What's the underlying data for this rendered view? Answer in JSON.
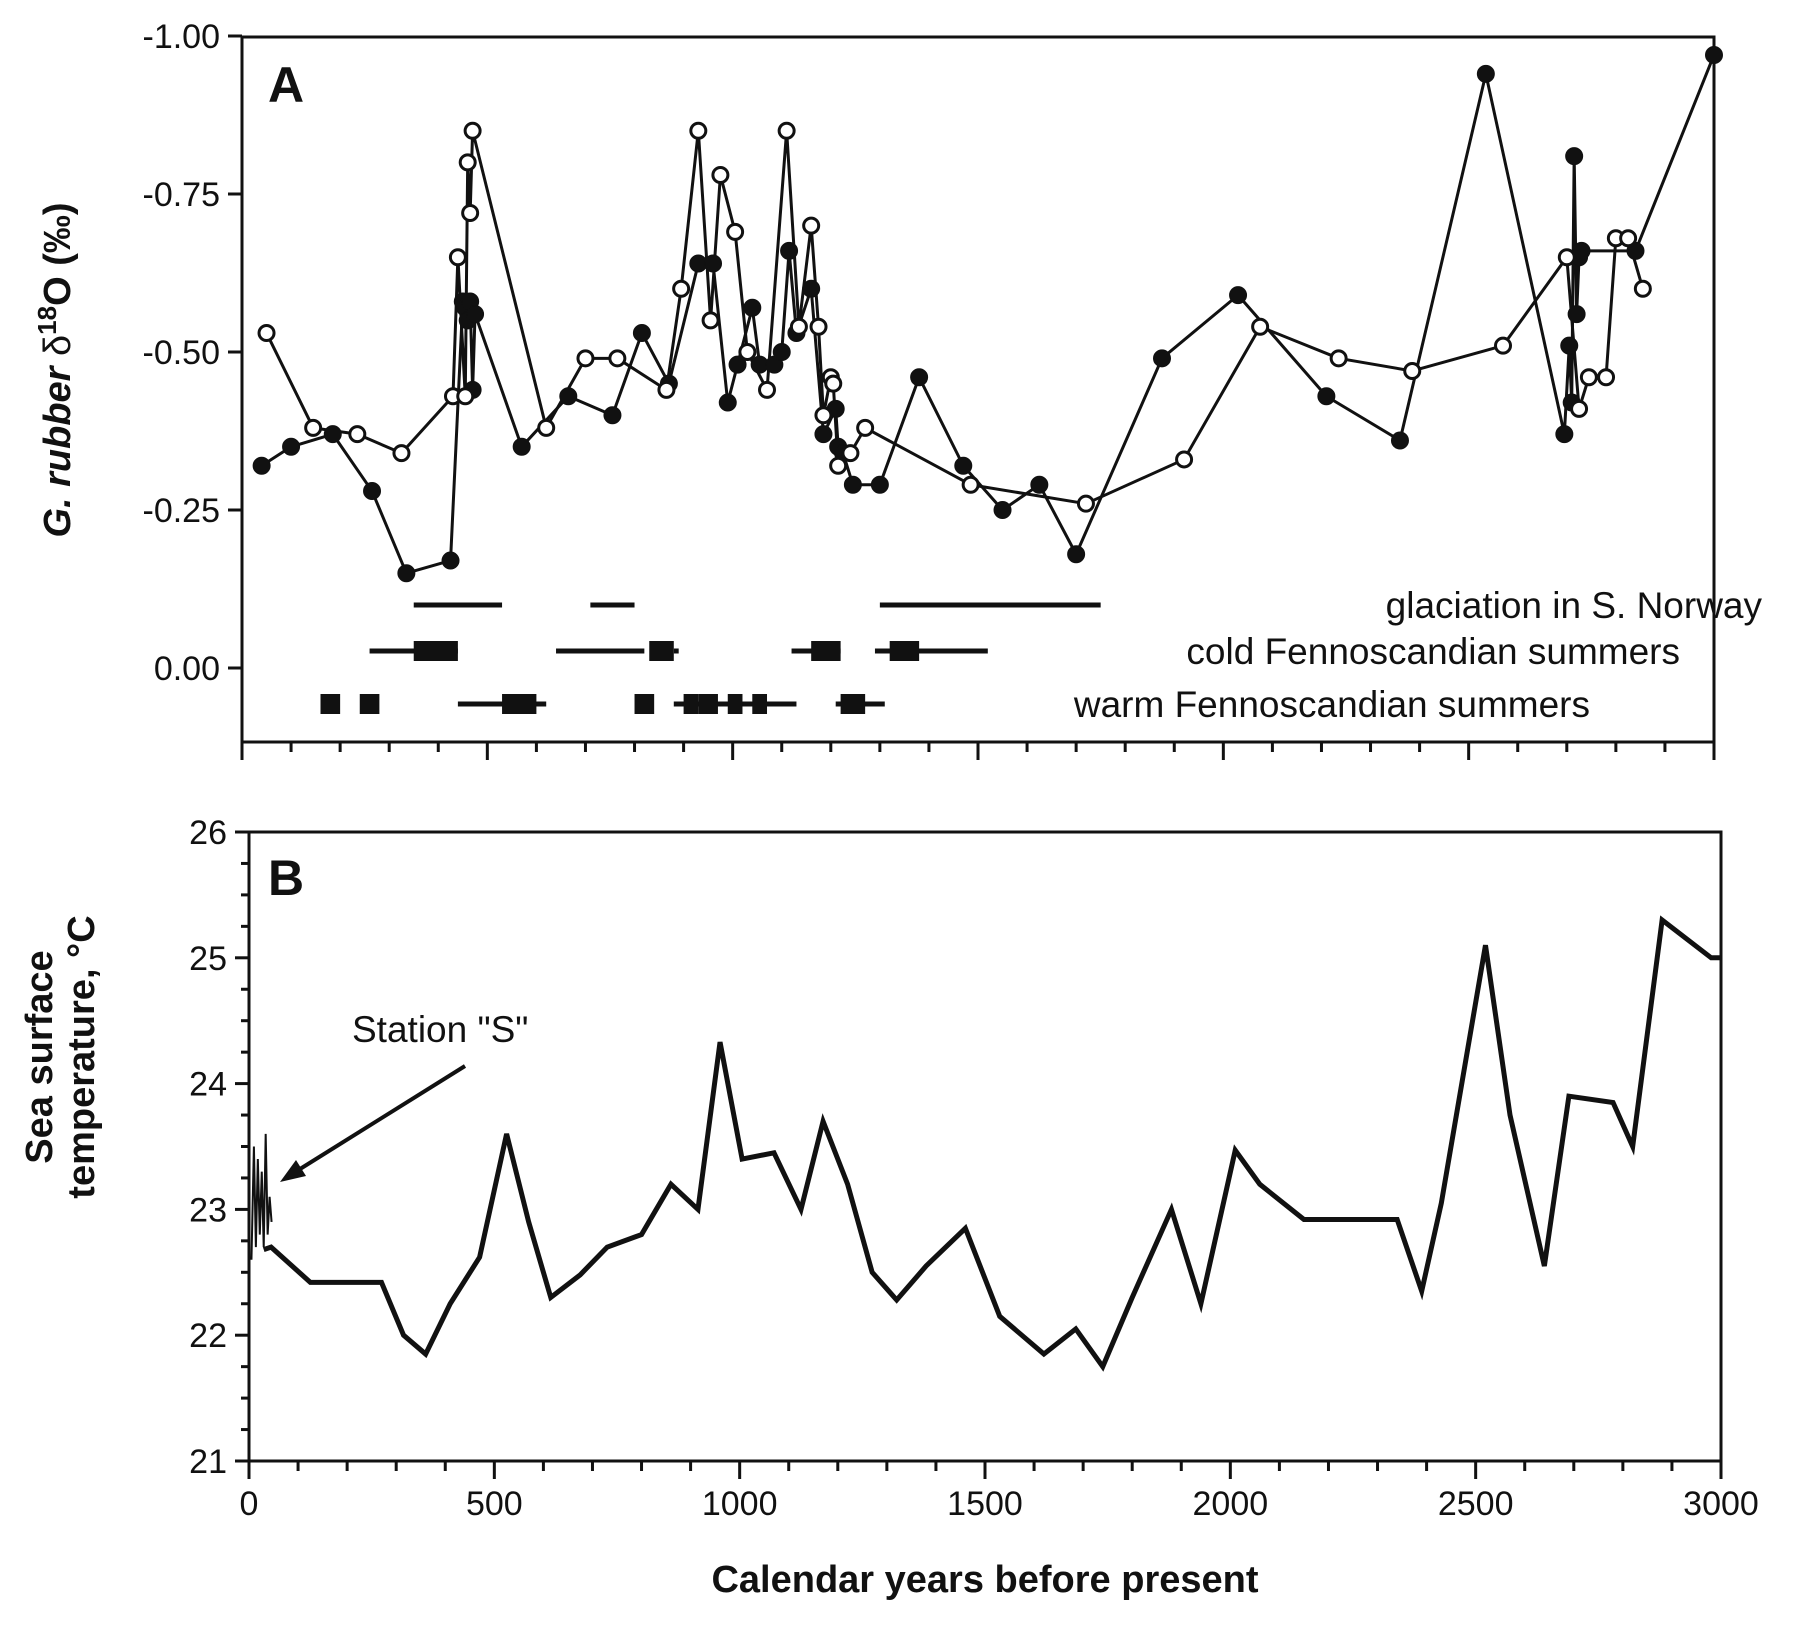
{
  "chart_data": [
    {
      "panel": "A",
      "type": "line",
      "ylabel": "G. rubber δ18O (‰)",
      "ylim": [
        0.12,
        -1.0
      ],
      "y_inverted": true,
      "yticks": [
        -1.0,
        -0.75,
        -0.5,
        -0.25,
        0.0
      ],
      "ytick_labels": [
        "-1.00",
        "-0.75",
        "-0.50",
        "-0.25",
        "0.00"
      ],
      "xlim": [
        0,
        3000
      ],
      "xticks": [
        0,
        500,
        1000,
        1500,
        2000,
        2500,
        3000
      ],
      "grid": false,
      "series": [
        {
          "marker": "filled-circle",
          "x": [
            40,
            100,
            185,
            265,
            335,
            425,
            450,
            455,
            460,
            465,
            470,
            475,
            570,
            665,
            755,
            815,
            870,
            930,
            960,
            990,
            1010,
            1040,
            1055,
            1085,
            1100,
            1115,
            1130,
            1160,
            1185,
            1210,
            1215,
            1225,
            1245,
            1300,
            1380,
            1470,
            1550,
            1625,
            1700,
            1875,
            2030,
            2210,
            2360,
            2535,
            2695,
            2705,
            2710,
            2715,
            2720,
            2725,
            2730,
            2840,
            3000
          ],
          "y": [
            -0.32,
            -0.35,
            -0.37,
            -0.28,
            -0.15,
            -0.17,
            -0.58,
            -0.57,
            -0.55,
            -0.58,
            -0.44,
            -0.56,
            -0.35,
            -0.43,
            -0.4,
            -0.53,
            -0.45,
            -0.64,
            -0.64,
            -0.42,
            -0.48,
            -0.57,
            -0.48,
            -0.48,
            -0.5,
            -0.66,
            -0.53,
            -0.6,
            -0.37,
            -0.41,
            -0.35,
            -0.34,
            -0.29,
            -0.29,
            -0.46,
            -0.32,
            -0.25,
            -0.29,
            -0.18,
            -0.49,
            -0.59,
            -0.43,
            -0.36,
            -0.94,
            -0.37,
            -0.51,
            -0.42,
            -0.81,
            -0.56,
            -0.65,
            -0.66,
            -0.66,
            -0.97
          ]
        },
        {
          "marker": "open-circle",
          "x": [
            50,
            145,
            235,
            325,
            430,
            440,
            455,
            460,
            465,
            470,
            620,
            700,
            765,
            865,
            895,
            930,
            955,
            975,
            1005,
            1030,
            1070,
            1110,
            1135,
            1160,
            1175,
            1185,
            1200,
            1205,
            1215,
            1240,
            1270,
            1485,
            1720,
            1920,
            2075,
            2235,
            2385,
            2570,
            2700,
            2725,
            2745,
            2780,
            2800,
            2825,
            2855
          ],
          "y": [
            -0.53,
            -0.38,
            -0.37,
            -0.34,
            -0.43,
            -0.65,
            -0.43,
            -0.8,
            -0.72,
            -0.85,
            -0.38,
            -0.49,
            -0.49,
            -0.44,
            -0.6,
            -0.85,
            -0.55,
            -0.78,
            -0.69,
            -0.5,
            -0.44,
            -0.85,
            -0.54,
            -0.7,
            -0.54,
            -0.4,
            -0.46,
            -0.45,
            -0.32,
            -0.34,
            -0.38,
            -0.29,
            -0.26,
            -0.33,
            -0.54,
            -0.49,
            -0.47,
            -0.51,
            -0.65,
            -0.41,
            -0.46,
            -0.46,
            -0.68,
            -0.68,
            -0.6
          ]
        }
      ],
      "event_bars": [
        {
          "label": "glaciation in S. Norway",
          "segments": [
            {
              "from": 350,
              "to": 530,
              "style": "thin"
            },
            {
              "from": 710,
              "to": 800,
              "style": "thin"
            },
            {
              "from": 1300,
              "to": 1750,
              "style": "thin"
            }
          ]
        },
        {
          "label": "cold Fennoscandian summers",
          "segments": [
            {
              "from": 260,
              "to": 440,
              "style": "thin"
            },
            {
              "from": 350,
              "to": 440,
              "style": "thick"
            },
            {
              "from": 640,
              "to": 820,
              "style": "thin"
            },
            {
              "from": 830,
              "to": 880,
              "style": "thick"
            },
            {
              "from": 880,
              "to": 890,
              "style": "thin"
            },
            {
              "from": 1120,
              "to": 1220,
              "style": "thin"
            },
            {
              "from": 1160,
              "to": 1220,
              "style": "thick"
            },
            {
              "from": 1290,
              "to": 1520,
              "style": "thin"
            },
            {
              "from": 1320,
              "to": 1380,
              "style": "thick"
            }
          ]
        },
        {
          "label": "warm Fennoscandian summers",
          "segments": [
            {
              "from": 160,
              "to": 200,
              "style": "thick"
            },
            {
              "from": 240,
              "to": 280,
              "style": "thick"
            },
            {
              "from": 440,
              "to": 620,
              "style": "thin"
            },
            {
              "from": 530,
              "to": 600,
              "style": "thick"
            },
            {
              "from": 800,
              "to": 840,
              "style": "thick"
            },
            {
              "from": 880,
              "to": 1130,
              "style": "thin"
            },
            {
              "from": 900,
              "to": 930,
              "style": "thick"
            },
            {
              "from": 930,
              "to": 970,
              "style": "thick"
            },
            {
              "from": 990,
              "to": 1020,
              "style": "thick"
            },
            {
              "from": 1040,
              "to": 1070,
              "style": "thick"
            },
            {
              "from": 1210,
              "to": 1310,
              "style": "thin"
            },
            {
              "from": 1220,
              "to": 1270,
              "style": "thick"
            }
          ]
        }
      ]
    },
    {
      "panel": "B",
      "type": "line",
      "xlabel": "Calendar years before present",
      "ylabel": "Sea surface temperature, °C",
      "ylim": [
        21,
        26
      ],
      "yticks": [
        21,
        22,
        23,
        24,
        25,
        26
      ],
      "xlim": [
        0,
        3000
      ],
      "xticks": [
        0,
        500,
        1000,
        1500,
        2000,
        2500,
        3000
      ],
      "grid": false,
      "series": [
        {
          "x": [
            30,
            45,
            125,
            200,
            270,
            315,
            360,
            410,
            470,
            525,
            570,
            615,
            675,
            730,
            800,
            860,
            915,
            960,
            1005,
            1070,
            1125,
            1170,
            1220,
            1270,
            1320,
            1380,
            1460,
            1530,
            1620,
            1685,
            1740,
            1800,
            1880,
            1940,
            2010,
            2060,
            2150,
            2225,
            2290,
            2340,
            2390,
            2430,
            2520,
            2570,
            2640,
            2690,
            2780,
            2820,
            2880,
            2980,
            3010
          ],
          "y": [
            22.68,
            22.7,
            22.42,
            22.42,
            22.42,
            22.0,
            21.85,
            22.25,
            22.62,
            23.6,
            22.9,
            22.3,
            22.48,
            22.7,
            22.8,
            23.2,
            23.0,
            24.33,
            23.4,
            23.45,
            23.0,
            23.7,
            23.2,
            22.5,
            22.28,
            22.55,
            22.85,
            22.15,
            21.85,
            22.05,
            21.75,
            22.3,
            23.0,
            22.25,
            23.47,
            23.2,
            22.92,
            22.92,
            22.92,
            22.92,
            22.35,
            23.05,
            25.1,
            23.75,
            22.55,
            23.9,
            23.85,
            23.5,
            25.3,
            25.0,
            25.0
          ]
        }
      ],
      "station_s": {
        "label": "Station \"S\"",
        "x": [
          5,
          10,
          14,
          18,
          22,
          26,
          30,
          34,
          38,
          42,
          46
        ],
        "y": [
          22.6,
          23.5,
          22.7,
          23.4,
          22.8,
          23.3,
          22.7,
          23.6,
          22.8,
          23.1,
          22.9
        ]
      }
    }
  ]
}
